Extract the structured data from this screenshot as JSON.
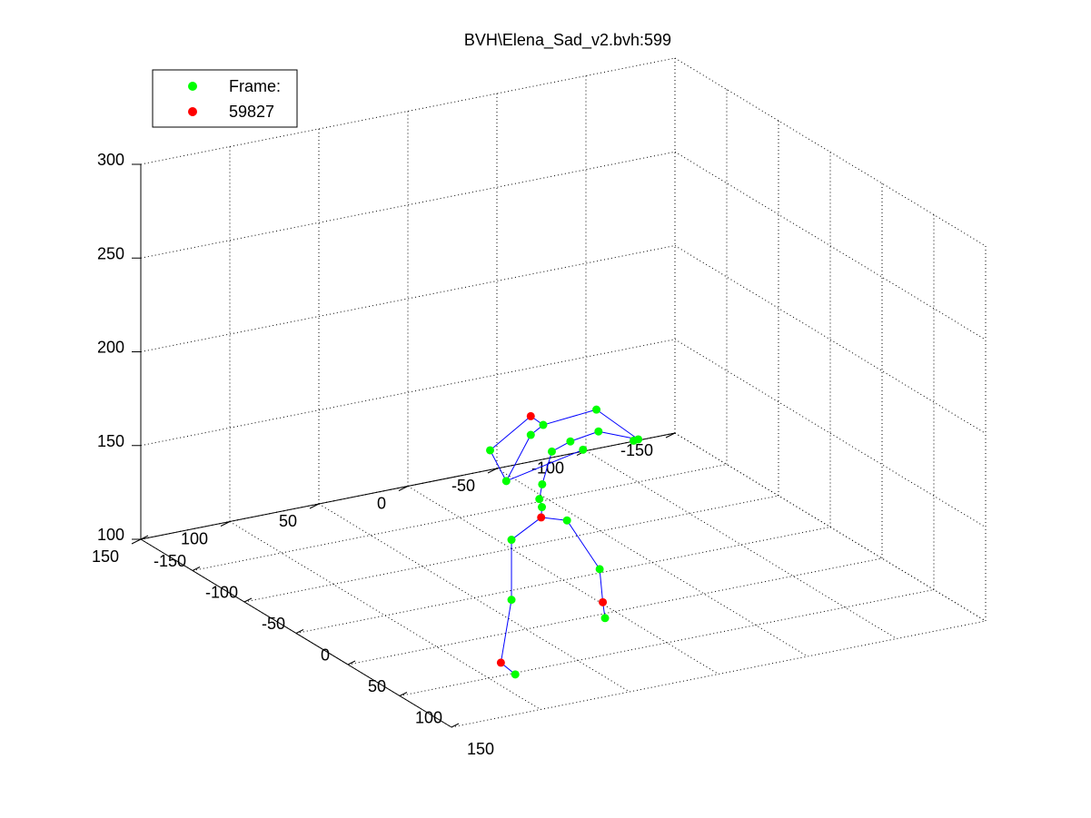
{
  "chart_data": {
    "type": "scatter",
    "title": "BVH\\Elena_Sad_v2.bvh:599",
    "view": "3d",
    "grid": true,
    "xlim": [
      -150,
      150
    ],
    "ylim": [
      -150,
      150
    ],
    "zlim": [
      100,
      300
    ],
    "x_ticks": [
      -150,
      -100,
      -50,
      0,
      50,
      100,
      150
    ],
    "y_ticks": [
      -150,
      -100,
      -50,
      0,
      50,
      100,
      150
    ],
    "z_ticks": [
      100,
      150,
      200,
      250,
      300
    ],
    "legend": {
      "placement": "top-left",
      "entries": [
        {
          "label": "Frame:",
          "color": "#00ff00"
        },
        {
          "label": "59827",
          "color": "#ff0000"
        }
      ]
    },
    "bone_color": "#0000ff",
    "series": [
      {
        "color": "#00ff00",
        "points": [
          [
            31,
            14,
            187
          ],
          [
            26,
            4,
            179
          ],
          [
            25,
            -25,
            178
          ],
          [
            10,
            -14,
            180
          ],
          [
            34,
            38,
            196
          ],
          [
            34,
            31,
            200
          ],
          [
            43,
            57,
            178
          ],
          [
            32,
            25,
            184
          ],
          [
            33,
            31,
            168
          ],
          [
            8,
            -14,
            191
          ],
          [
            2,
            -41,
            168
          ],
          [
            36,
            62,
            193
          ],
          [
            32,
            32,
            160
          ],
          [
            31,
            30,
            155
          ],
          [
            26,
            13,
            143
          ],
          [
            36,
            50,
            143
          ],
          [
            18,
            -10,
            110
          ],
          [
            36,
            50,
            111
          ],
          [
            6,
            -20,
            78
          ],
          [
            50,
            56,
            77
          ]
        ]
      },
      {
        "color": "#ff0000",
        "points": [
          [
            34,
            38,
            206
          ],
          [
            32,
            31,
            150
          ],
          [
            9,
            -17,
            88
          ],
          [
            55,
            67,
            87
          ]
        ]
      }
    ],
    "bones": [
      [
        [
          34,
          38,
          206
        ],
        [
          34,
          31,
          200
        ]
      ],
      [
        [
          34,
          31,
          200
        ],
        [
          34,
          38,
          196
        ]
      ],
      [
        [
          34,
          38,
          196
        ],
        [
          43,
          57,
          178
        ]
      ],
      [
        [
          43,
          57,
          178
        ],
        [
          36,
          62,
          193
        ]
      ],
      [
        [
          36,
          62,
          193
        ],
        [
          34,
          38,
          206
        ]
      ],
      [
        [
          34,
          31,
          200
        ],
        [
          8,
          -14,
          191
        ]
      ],
      [
        [
          8,
          -14,
          191
        ],
        [
          2,
          -41,
          168
        ]
      ],
      [
        [
          2,
          -41,
          168
        ],
        [
          10,
          -14,
          180
        ]
      ],
      [
        [
          10,
          -14,
          180
        ],
        [
          31,
          14,
          187
        ]
      ],
      [
        [
          31,
          14,
          187
        ],
        [
          32,
          25,
          184
        ]
      ],
      [
        [
          32,
          25,
          184
        ],
        [
          33,
          31,
          168
        ]
      ],
      [
        [
          33,
          31,
          168
        ],
        [
          32,
          32,
          160
        ]
      ],
      [
        [
          32,
          32,
          160
        ],
        [
          31,
          30,
          155
        ]
      ],
      [
        [
          31,
          30,
          155
        ],
        [
          32,
          31,
          150
        ]
      ],
      [
        [
          32,
          31,
          150
        ],
        [
          26,
          13,
          143
        ]
      ],
      [
        [
          26,
          13,
          143
        ],
        [
          18,
          -10,
          110
        ]
      ],
      [
        [
          18,
          -10,
          110
        ],
        [
          9,
          -17,
          88
        ]
      ],
      [
        [
          9,
          -17,
          88
        ],
        [
          6,
          -20,
          78
        ]
      ],
      [
        [
          32,
          31,
          150
        ],
        [
          36,
          50,
          143
        ]
      ],
      [
        [
          36,
          50,
          143
        ],
        [
          36,
          50,
          111
        ]
      ],
      [
        [
          36,
          50,
          111
        ],
        [
          55,
          67,
          87
        ]
      ],
      [
        [
          55,
          67,
          87
        ],
        [
          50,
          56,
          77
        ]
      ],
      [
        [
          43,
          57,
          178
        ],
        [
          26,
          4,
          179
        ]
      ]
    ]
  }
}
